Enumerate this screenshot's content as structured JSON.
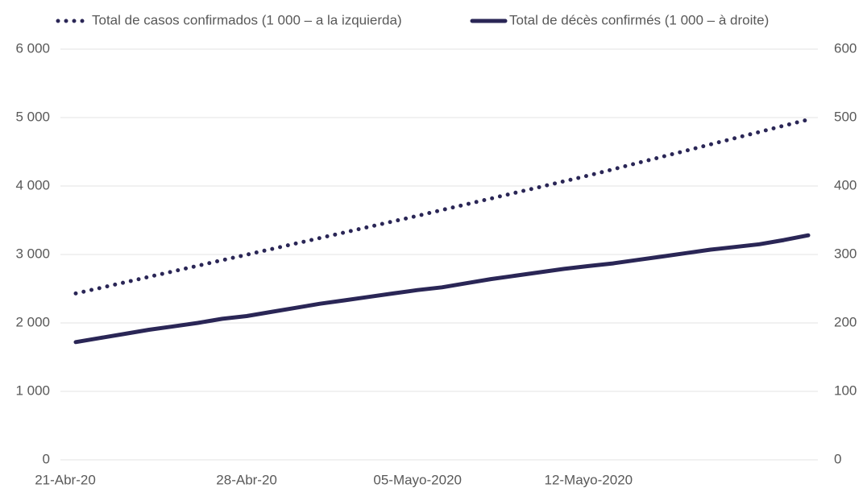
{
  "chart_data": {
    "type": "line",
    "categories": [
      "21-Abr-20",
      null,
      null,
      null,
      null,
      null,
      null,
      "28-Abr-20",
      null,
      null,
      null,
      null,
      null,
      null,
      "05-Mayo-2020",
      null,
      null,
      null,
      null,
      null,
      null,
      "12-Mayo-2020",
      null,
      null,
      null,
      null,
      null,
      null,
      null,
      null,
      null
    ],
    "series": [
      {
        "name": "Total de casos confirmados (1 000 – a la izquierda)",
        "color": "#2a2656",
        "style": "dotted",
        "values": [
          2430,
          2511,
          2592,
          2673,
          2754,
          2835,
          2916,
          2997,
          3078,
          3159,
          3240,
          3321,
          3402,
          3483,
          3565,
          3649,
          3733,
          3817,
          3901,
          3985,
          4069,
          4153,
          4244,
          4335,
          4426,
          4517,
          4608,
          4699,
          4790,
          4881,
          4970
        ]
      },
      {
        "name": "Total de décès confirmés (1 000 – à droite)",
        "color": "#2a2656",
        "style": "solid",
        "axis": "y2",
        "values": [
          172,
          178,
          184,
          190,
          195,
          200,
          206,
          210,
          216,
          222,
          228,
          233,
          238,
          243,
          248,
          252,
          258,
          264,
          269,
          274,
          279,
          283,
          287,
          292,
          297,
          302,
          307,
          311,
          315,
          321,
          328
        ]
      }
    ],
    "ylim": [
      0,
      6000
    ],
    "yticks": [
      0,
      {
        "value": 1000,
        "label": "1 000"
      },
      {
        "value": 2000,
        "label": "2 000"
      },
      {
        "value": 3000,
        "label": "3 000"
      },
      {
        "value": 4000,
        "label": "4 000"
      },
      {
        "value": 5000,
        "label": "5 000"
      },
      {
        "value": 6000,
        "label": "6 000"
      }
    ],
    "y2lim": [
      0,
      600
    ],
    "y2ticks": [
      0,
      100,
      200,
      300,
      400,
      500,
      600
    ],
    "grid": true,
    "legend": "top"
  }
}
